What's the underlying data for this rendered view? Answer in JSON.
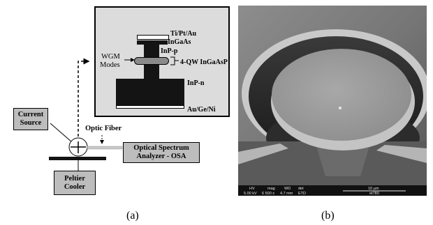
{
  "panel_a": {
    "caption": "(a)",
    "layers": {
      "top_metal": "Ti/Pt/Au",
      "cap": "InGaAs",
      "p_layer": "InP-p",
      "qw": "4-QW InGaAsP",
      "n_layer": "InP-n",
      "bottom_metal": "Au/Ge/Ni"
    },
    "wgm_line1": "WGM",
    "wgm_line2": "Modes",
    "current_source_line1": "Current",
    "current_source_line2": "Source",
    "optic_fiber": "Optic Fiber",
    "osa_line1": "Optical Spectrum",
    "osa_line2": "Analyzer - OSA",
    "peltier_line1": "Peltier",
    "peltier_line2": "Cooler"
  },
  "panel_b": {
    "caption": "(b)",
    "sem_bar": {
      "headers": [
        "HV",
        "mag",
        "WD",
        "det"
      ],
      "values": [
        "5.00 kV",
        "6 500 x",
        "4.7 mm",
        "ETD"
      ],
      "scale": "10 μm",
      "tag": "et780"
    }
  },
  "colors": {
    "layer_dark": "#141414",
    "label_fill": "#bdbdbd",
    "sem_surface": "#9c9c9c"
  }
}
